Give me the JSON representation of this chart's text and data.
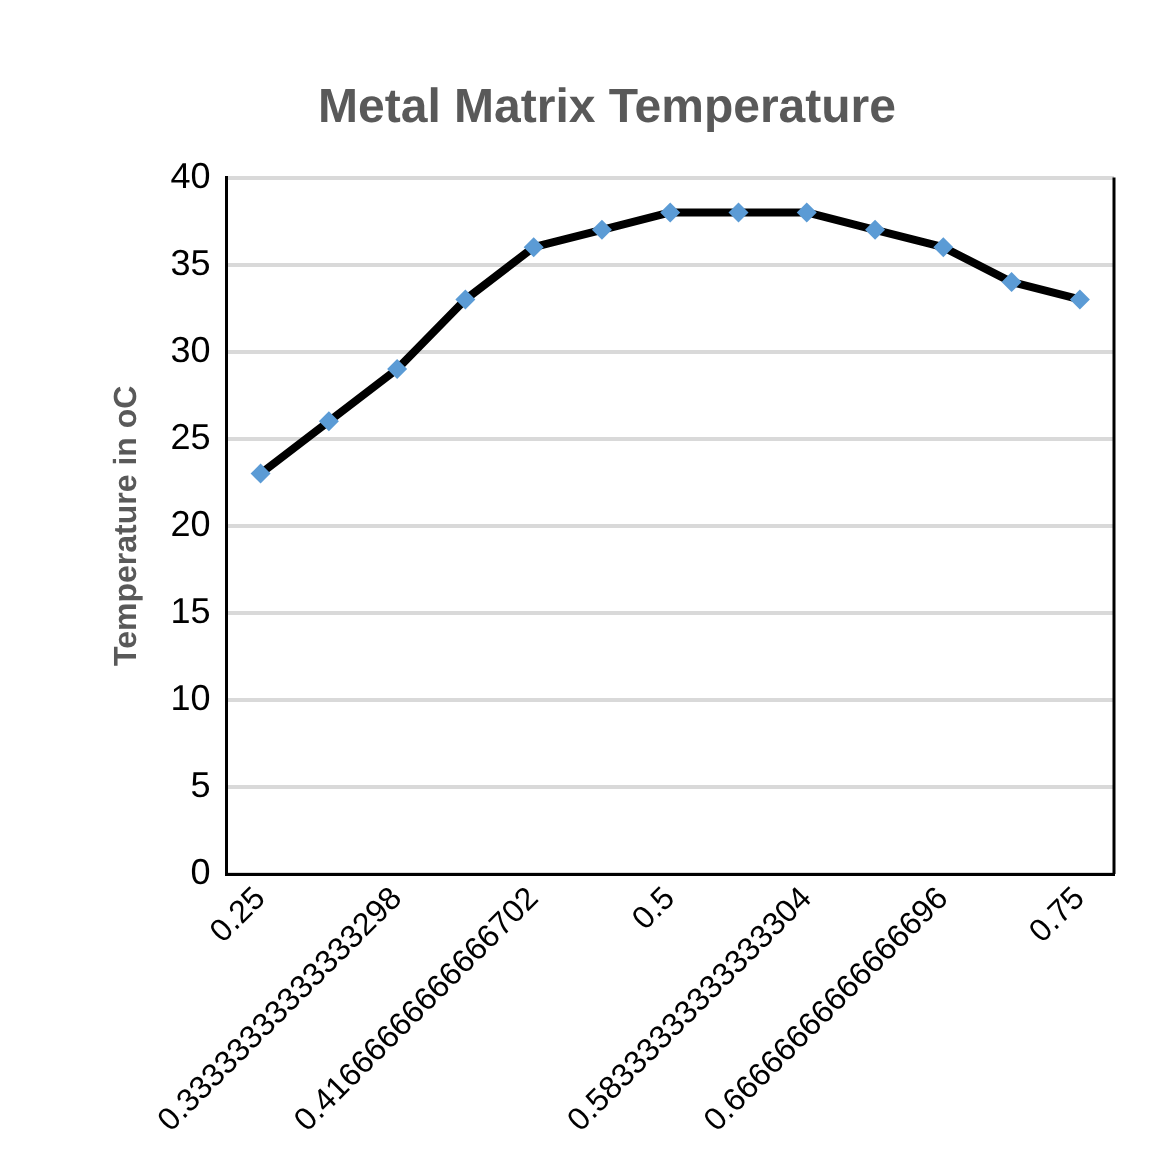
{
  "chart_data": {
    "type": "line",
    "title": "Metal Matrix Temperature",
    "ylabel": "Temperature in oC",
    "categories": [
      "0.25",
      null,
      "0.33333333333333298",
      null,
      "0.41666666666666702",
      null,
      "0.5",
      null,
      "0.58333333333333304",
      null,
      "0.66666666666666696",
      null,
      "0.75"
    ],
    "series": [
      {
        "color": "#000000",
        "values": [
          23,
          26,
          29,
          33,
          36,
          37,
          38,
          38,
          38,
          37,
          36,
          34,
          33
        ]
      }
    ],
    "ylim": [
      0,
      40
    ],
    "yticks": [
      0,
      5,
      10,
      15,
      20,
      25,
      30,
      35,
      40
    ],
    "grid": "y",
    "marker": "diamond",
    "line_style": "solid",
    "legend": false
  }
}
